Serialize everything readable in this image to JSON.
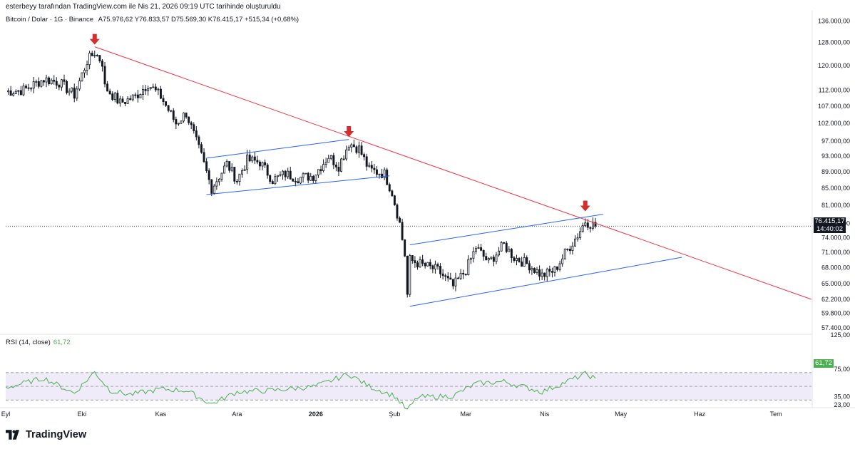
{
  "attribution": "esterbeyy tarafından TradingView.com ile Nis 21, 2026 09:19 UTC tarihinde oluşturuldu",
  "legend": {
    "symbol": "Bitcoin / Dolar · 1G · Binance",
    "open_label": "A",
    "open": "75.976,62",
    "high_label": "Y",
    "high": "76.833,57",
    "low_label": "D",
    "low": "75.569,30",
    "close_label": "K",
    "close": "76.415,17",
    "change": "+515,34 (+0,68%)"
  },
  "price_axis_labels": [
    "136.000,00",
    "128.000,00",
    "120.000,00",
    "112.000,00",
    "107.000,00",
    "102.000,00",
    "97.000,00",
    "93.000,00",
    "89.000,00",
    "85.000,00",
    "81.000,00",
    "77.000,00",
    "74.000,00",
    "71.000,00",
    "68.000,00",
    "65.000,00",
    "62.200,00",
    "59.800,00",
    "57.400,00"
  ],
  "current_price": {
    "price": "76.415,17",
    "countdown": "14:40:02"
  },
  "rsi": {
    "label": "RSI (14, close)",
    "value": "61,72",
    "axis_labels": [
      "125,00",
      "75,00",
      "35,00",
      "23,00"
    ]
  },
  "time_axis_labels": [
    "Eyl",
    "Eki",
    "Kas",
    "Ara",
    "2026",
    "Şub",
    "Mar",
    "Nis",
    "May",
    "Haz",
    "Tem"
  ],
  "brand": "TradingView",
  "colors": {
    "up": "#131722",
    "down": "#131722",
    "trendline": "#f23645",
    "channel": "#2962ff",
    "arrow": "#d32f2f",
    "rsi_line": "#4caf50",
    "rsi_band": "#7e57c2"
  },
  "chart_data": {
    "type": "candlestick",
    "symbol": "Bitcoin / Dolar",
    "interval": "1G",
    "y_scale": "log",
    "ylim": [
      56500,
      140000
    ],
    "x_range": [
      "2025-09-01",
      "2026-07-15"
    ],
    "x_ticks": [
      {
        "label": "Eyl",
        "date": "2025-09-01"
      },
      {
        "label": "Eki",
        "date": "2025-10-01"
      },
      {
        "label": "Kas",
        "date": "2025-11-01"
      },
      {
        "label": "Ara",
        "date": "2025-12-01"
      },
      {
        "label": "2026",
        "date": "2026-01-01"
      },
      {
        "label": "Şub",
        "date": "2026-02-01"
      },
      {
        "label": "Mar",
        "date": "2026-03-01"
      },
      {
        "label": "Nis",
        "date": "2026-04-01"
      },
      {
        "label": "May",
        "date": "2026-05-01"
      },
      {
        "label": "Haz",
        "date": "2026-06-01"
      },
      {
        "label": "Tem",
        "date": "2026-07-01"
      }
    ],
    "price_keypoints": [
      {
        "date": "2025-09-01",
        "close": 111500
      },
      {
        "date": "2025-09-08",
        "close": 112000
      },
      {
        "date": "2025-09-16",
        "close": 115500
      },
      {
        "date": "2025-09-22",
        "close": 114500
      },
      {
        "date": "2025-09-28",
        "close": 110500
      },
      {
        "date": "2025-10-03",
        "close": 121500
      },
      {
        "date": "2025-10-06",
        "close": 124500
      },
      {
        "date": "2025-10-09",
        "close": 121000
      },
      {
        "date": "2025-10-10",
        "close": 113000
      },
      {
        "date": "2025-10-16",
        "close": 108000
      },
      {
        "date": "2025-10-22",
        "close": 110000
      },
      {
        "date": "2025-10-27",
        "close": 114000
      },
      {
        "date": "2025-11-01",
        "close": 110000
      },
      {
        "date": "2025-11-07",
        "close": 102000
      },
      {
        "date": "2025-11-11",
        "close": 105000
      },
      {
        "date": "2025-11-17",
        "close": 93000
      },
      {
        "date": "2025-11-21",
        "close": 85000
      },
      {
        "date": "2025-11-27",
        "close": 91000
      },
      {
        "date": "2025-12-01",
        "close": 87000
      },
      {
        "date": "2025-12-05",
        "close": 92000
      },
      {
        "date": "2025-12-10",
        "close": 91500
      },
      {
        "date": "2025-12-15",
        "close": 87000
      },
      {
        "date": "2025-12-20",
        "close": 88500
      },
      {
        "date": "2025-12-25",
        "close": 87500
      },
      {
        "date": "2025-12-31",
        "close": 88000
      },
      {
        "date": "2026-01-06",
        "close": 93000
      },
      {
        "date": "2026-01-10",
        "close": 90500
      },
      {
        "date": "2026-01-14",
        "close": 96500
      },
      {
        "date": "2026-01-18",
        "close": 95000
      },
      {
        "date": "2026-01-22",
        "close": 89500
      },
      {
        "date": "2026-01-28",
        "close": 88500
      },
      {
        "date": "2026-01-31",
        "close": 84000
      },
      {
        "date": "2026-02-03",
        "close": 77000
      },
      {
        "date": "2026-02-05",
        "close": 70500
      },
      {
        "date": "2026-02-06",
        "close": 63000
      },
      {
        "date": "2026-02-07",
        "close": 69500
      },
      {
        "date": "2026-02-12",
        "close": 68500
      },
      {
        "date": "2026-02-18",
        "close": 67500
      },
      {
        "date": "2026-02-24",
        "close": 64500
      },
      {
        "date": "2026-03-01",
        "close": 67500
      },
      {
        "date": "2026-03-05",
        "close": 72000
      },
      {
        "date": "2026-03-10",
        "close": 69000
      },
      {
        "date": "2026-03-16",
        "close": 72500
      },
      {
        "date": "2026-03-20",
        "close": 70000
      },
      {
        "date": "2026-03-26",
        "close": 68500
      },
      {
        "date": "2026-03-31",
        "close": 66500
      },
      {
        "date": "2026-04-05",
        "close": 67500
      },
      {
        "date": "2026-04-10",
        "close": 71500
      },
      {
        "date": "2026-04-14",
        "close": 74500
      },
      {
        "date": "2026-04-17",
        "close": 77500
      },
      {
        "date": "2026-04-21",
        "close": 76415
      }
    ],
    "rsi_range": [
      23,
      125
    ],
    "rsi_bands": [
      30,
      70
    ],
    "rsi_keypoints": [
      {
        "date": "2025-09-01",
        "rsi": 48
      },
      {
        "date": "2025-09-16",
        "rsi": 62
      },
      {
        "date": "2025-09-28",
        "rsi": 40
      },
      {
        "date": "2025-10-06",
        "rsi": 71
      },
      {
        "date": "2025-10-12",
        "rsi": 44
      },
      {
        "date": "2025-10-20",
        "rsi": 38
      },
      {
        "date": "2025-11-01",
        "rsi": 46
      },
      {
        "date": "2025-11-11",
        "rsi": 44
      },
      {
        "date": "2025-11-21",
        "rsi": 24
      },
      {
        "date": "2025-12-01",
        "rsi": 42
      },
      {
        "date": "2025-12-15",
        "rsi": 44
      },
      {
        "date": "2026-01-01",
        "rsi": 50
      },
      {
        "date": "2026-01-14",
        "rsi": 68
      },
      {
        "date": "2026-01-22",
        "rsi": 50
      },
      {
        "date": "2026-02-01",
        "rsi": 36
      },
      {
        "date": "2026-02-06",
        "rsi": 15
      },
      {
        "date": "2026-02-10",
        "rsi": 34
      },
      {
        "date": "2026-02-24",
        "rsi": 36
      },
      {
        "date": "2026-03-05",
        "rsi": 54
      },
      {
        "date": "2026-03-16",
        "rsi": 57
      },
      {
        "date": "2026-03-31",
        "rsi": 42
      },
      {
        "date": "2026-04-17",
        "rsi": 68
      },
      {
        "date": "2026-04-21",
        "rsi": 61.72
      }
    ],
    "drawings": {
      "descending_trendline": {
        "from": {
          "date": "2025-10-06",
          "price": 126500
        },
        "to": {
          "date": "2026-07-15",
          "price": 62200
        }
      },
      "channel_1": {
        "upper": {
          "from": {
            "date": "2025-11-19",
            "price": 92500
          },
          "to": {
            "date": "2026-01-14",
            "price": 97500
          }
        },
        "lower": {
          "from": {
            "date": "2025-11-19",
            "price": 83500
          },
          "to": {
            "date": "2026-01-30",
            "price": 88000
          }
        }
      },
      "channel_2": {
        "upper": {
          "from": {
            "date": "2026-02-07",
            "price": 72500
          },
          "to": {
            "date": "2026-04-24",
            "price": 79000
          }
        },
        "lower": {
          "from": {
            "date": "2026-02-07",
            "price": 61000
          },
          "to": {
            "date": "2026-05-25",
            "price": 70000
          }
        }
      },
      "arrows": [
        {
          "date": "2025-10-06",
          "price": 127000
        },
        {
          "date": "2026-01-14",
          "price": 98000
        },
        {
          "date": "2026-04-17",
          "price": 79500
        }
      ]
    }
  }
}
